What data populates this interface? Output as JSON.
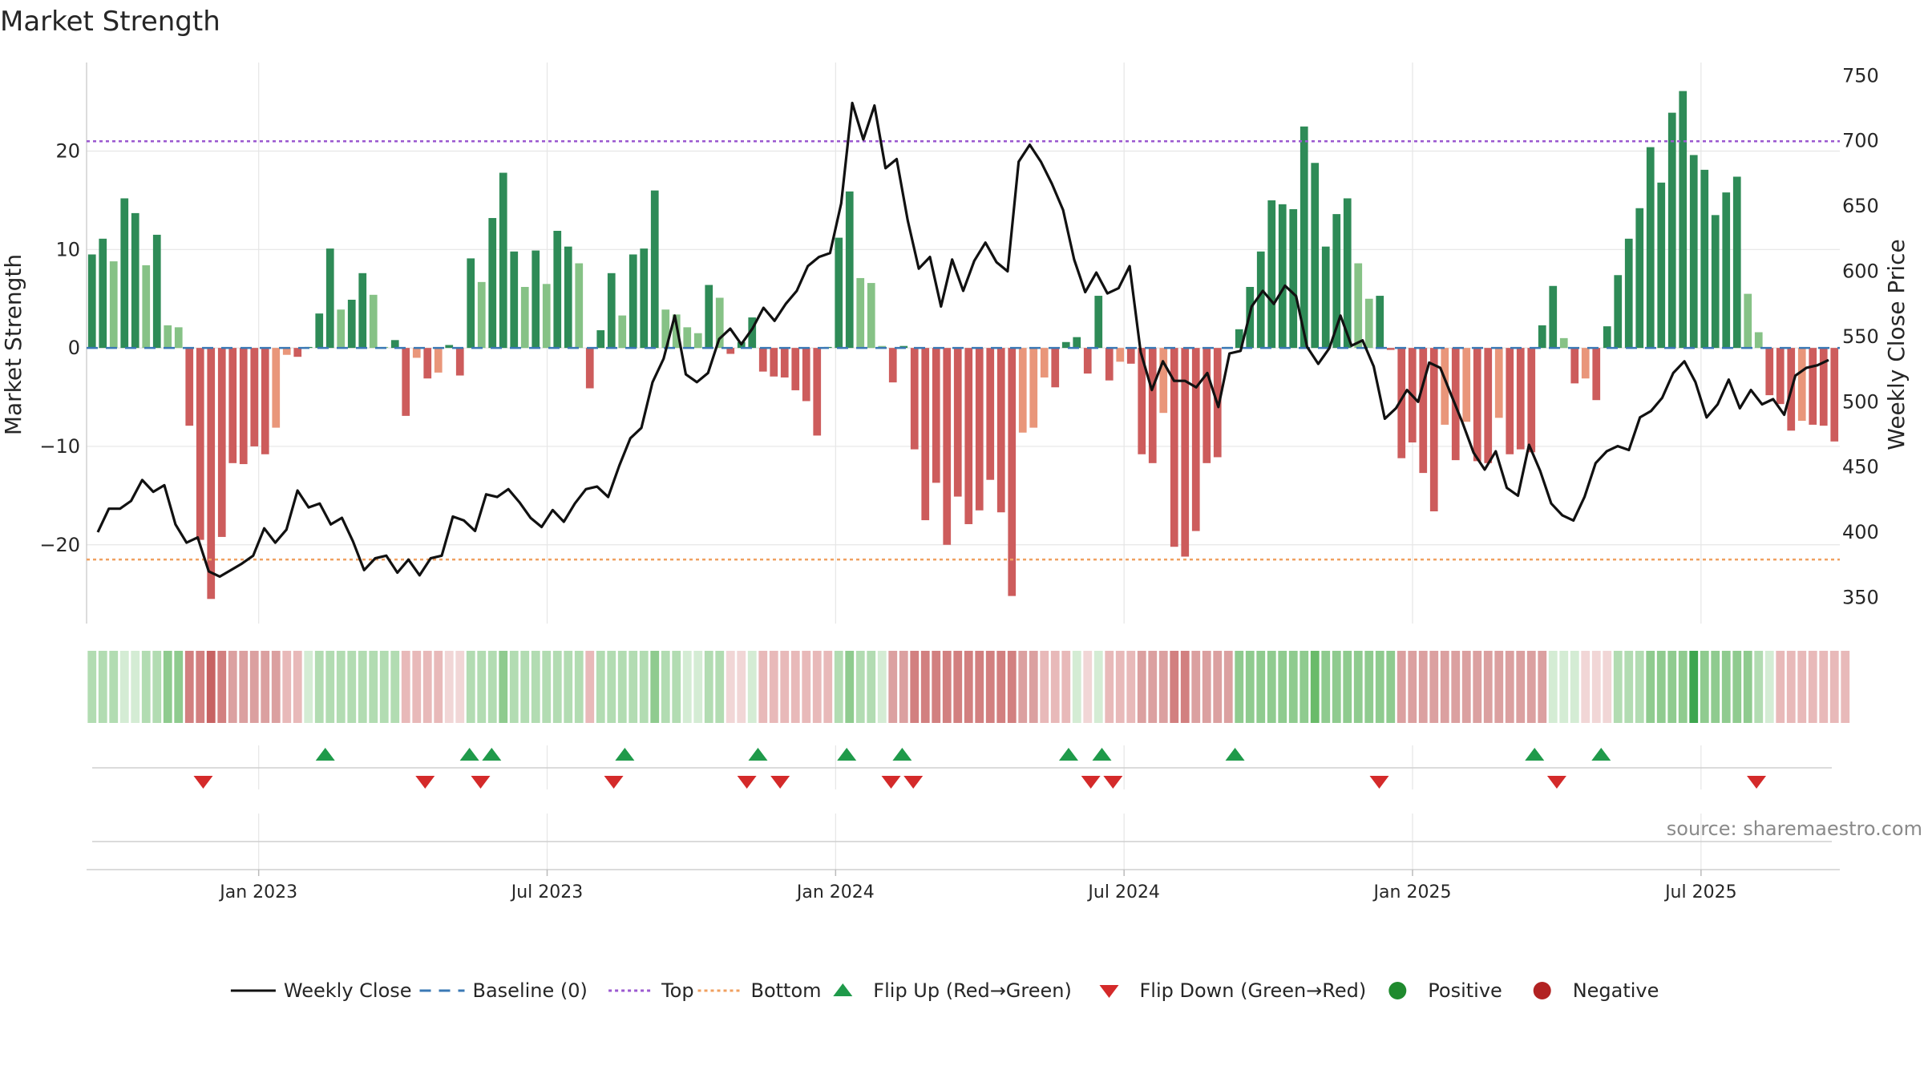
{
  "chart_data": {
    "type": "bar",
    "title": "Market Strength",
    "ylabel_left": "Market Strength",
    "ylabel_right": "Weekly Close Price",
    "left_ylim": [
      -28,
      29
    ],
    "right_ylim": [
      330,
      760
    ],
    "left_ticks": [
      -20,
      -10,
      0,
      10,
      20
    ],
    "left_tick_labels": [
      "−20",
      "−10",
      "0",
      "10",
      "20"
    ],
    "right_ticks": [
      350,
      400,
      450,
      500,
      550,
      600,
      650,
      700,
      750
    ],
    "right_tick_labels": [
      "350",
      "400",
      "450",
      "500",
      "550",
      "600",
      "650",
      "700",
      "750"
    ],
    "x_week_range": [
      0,
      156
    ],
    "x_ticks": [
      14.5,
      40.5,
      66.5,
      92.5,
      118.5,
      144.5
    ],
    "x_tick_labels": [
      "Jan 2023",
      "Jul 2023",
      "Jan 2024",
      "Jul 2024",
      "Jan 2025",
      "Jul 2025"
    ],
    "top_threshold": 21,
    "bottom_threshold": -21.5,
    "strength": [
      9.5,
      11.1,
      8.8,
      15.2,
      13.7,
      8.4,
      11.5,
      2.3,
      2.1,
      -7.9,
      -19.5,
      -25.5,
      -19.2,
      -11.7,
      -11.8,
      -10,
      -10.8,
      -8.1,
      -0.7,
      -0.9,
      0.1,
      3.5,
      10.1,
      3.9,
      4.9,
      7.6,
      5.4,
      0.1,
      0.8,
      -6.9,
      -1,
      -3.1,
      -2.5,
      0.3,
      -2.8,
      9.1,
      6.7,
      13.2,
      17.8,
      9.8,
      6.2,
      9.9,
      6.5,
      11.9,
      10.3,
      8.6,
      -4.1,
      1.8,
      7.6,
      3.3,
      9.5,
      10.1,
      16,
      3.9,
      3.4,
      2.1,
      1.5,
      6.4,
      5.1,
      -0.6,
      0.6,
      3.1,
      -2.4,
      -2.9,
      -3,
      -4.3,
      -5.4,
      -8.9,
      0.1,
      11.2,
      15.9,
      7.1,
      6.6,
      0.2,
      -3.5,
      0.2,
      -10.3,
      -17.5,
      -13.7,
      -20,
      -15.1,
      -17.9,
      -16.5,
      -13.4,
      -16.7,
      -25.2,
      -8.6,
      -8.1,
      -3,
      -4,
      0.6,
      1.1,
      -2.6,
      5.3,
      -3.3,
      -1.4,
      -1.6,
      -10.8,
      -11.7,
      -6.6,
      -20.2,
      -21.2,
      -18.6,
      -11.7,
      -11.1,
      0.1,
      1.9,
      6.2,
      9.8,
      15,
      14.6,
      14.1,
      22.5,
      18.8,
      10.3,
      13.6,
      15.2,
      8.6,
      5,
      5.3,
      -0.2,
      -11.2,
      -9.6,
      -12.7,
      -16.6,
      -7.8,
      -11.4,
      -7.5,
      -11.5,
      -11.7,
      -7.1,
      -10.8,
      -10.3,
      -10.6,
      2.3,
      6.3,
      1,
      -3.6,
      -3.1,
      -5.3,
      2.2,
      7.4,
      11.1,
      14.2,
      20.4,
      16.8,
      23.9,
      26.1,
      19.6,
      18.1,
      13.5,
      15.8,
      17.4,
      5.5,
      1.6,
      -4.8,
      -5.7,
      -8.4,
      -7.4,
      -7.8,
      -7.9,
      -9.5
    ],
    "price_x_weeks": [
      0,
      1,
      2,
      3,
      4,
      5,
      6,
      7,
      8,
      9,
      10,
      11,
      12,
      13,
      14,
      15,
      16,
      17,
      18,
      19,
      20,
      21,
      22,
      23,
      24,
      25,
      26,
      27,
      28,
      29,
      30,
      31,
      32,
      33,
      34,
      35,
      36,
      37,
      38,
      39,
      40,
      41,
      42,
      43,
      44,
      45,
      46,
      47,
      48,
      49,
      50,
      51,
      52,
      53,
      54,
      55,
      56,
      57,
      58,
      59,
      60,
      61,
      62,
      63,
      64,
      65,
      66,
      67,
      68,
      69,
      70,
      71,
      72,
      73,
      74,
      75,
      76,
      77,
      78,
      79,
      80,
      81,
      82,
      83,
      84,
      85,
      86,
      87,
      88,
      89,
      90,
      91,
      92,
      93,
      94,
      95,
      96,
      97,
      98,
      99,
      100,
      101,
      102,
      103,
      104,
      105,
      106,
      107,
      108,
      109,
      110,
      111,
      112,
      113,
      114,
      115,
      116,
      117,
      118,
      119,
      120,
      121,
      122,
      123,
      124,
      125,
      126,
      127,
      128,
      129,
      130,
      131,
      132,
      133,
      134,
      135,
      136,
      137,
      138,
      139,
      140,
      141,
      142,
      143,
      144,
      145,
      146,
      147,
      148,
      149,
      150,
      151,
      152,
      153,
      154,
      155,
      156
    ],
    "price": [
      400,
      418,
      418,
      424,
      440,
      431,
      436,
      406,
      392,
      396,
      370,
      366,
      371,
      376,
      382,
      403,
      392,
      402,
      432,
      419,
      422,
      406,
      411,
      393,
      371,
      380,
      382,
      369,
      379,
      367,
      380,
      382,
      412,
      409,
      401,
      429,
      427,
      433,
      423,
      411,
      404,
      417,
      408,
      422,
      433,
      435,
      427,
      451,
      472,
      480,
      515,
      533,
      566,
      521,
      515,
      522,
      548,
      556,
      544,
      556,
      572,
      562,
      575,
      585,
      604,
      611,
      614,
      652,
      729,
      701,
      727,
      679,
      686,
      639,
      602,
      611,
      573,
      609,
      585,
      608,
      622,
      607,
      600,
      684,
      697,
      684,
      667,
      647,
      609,
      584,
      599,
      583,
      587,
      604,
      538,
      509,
      531,
      516,
      516,
      511,
      522,
      496,
      537,
      539,
      573,
      585,
      575,
      589,
      581,
      542,
      529,
      541,
      566,
      543,
      547,
      527,
      487,
      495,
      509,
      500,
      530,
      526,
      505,
      484,
      461,
      448,
      462,
      434,
      428,
      467,
      447,
      422,
      413,
      409,
      427,
      453,
      462,
      466,
      463,
      488,
      493,
      503,
      522,
      531,
      515,
      488,
      498,
      517,
      495,
      509,
      498,
      502,
      490,
      520,
      526,
      528,
      532
    ]
  },
  "heatmap": {
    "levels": [
      2,
      2,
      2,
      1,
      1,
      2,
      2,
      3,
      3,
      -4,
      -4,
      -5,
      -4,
      -3,
      -3,
      -3,
      -3,
      -3,
      -2,
      -2,
      1,
      2,
      2,
      2,
      2,
      2,
      2,
      2,
      2,
      -2,
      -2,
      -2,
      -2,
      -1,
      -1,
      2,
      2,
      2,
      3,
      2,
      2,
      2,
      2,
      2,
      2,
      2,
      -2,
      2,
      2,
      2,
      2,
      2,
      3,
      2,
      2,
      1,
      1,
      2,
      2,
      -1,
      -1,
      1,
      -2,
      -2,
      -2,
      -2,
      -2,
      -2,
      -2,
      2,
      3,
      2,
      2,
      1,
      -3,
      -3,
      -4,
      -4,
      -4,
      -4,
      -4,
      -4,
      -4,
      -4,
      -4,
      -4,
      -3,
      -3,
      -2,
      -2,
      -2,
      1,
      -1,
      1,
      -2,
      -2,
      -2,
      -3,
      -3,
      -3,
      -4,
      -4,
      -3,
      -3,
      -3,
      -3,
      3,
      3,
      3,
      3,
      3,
      3,
      3,
      4,
      3,
      3,
      3,
      3,
      3,
      3,
      3,
      -3,
      -3,
      -3,
      -3,
      -3,
      -3,
      -3,
      -3,
      -3,
      -3,
      -3,
      -3,
      -3,
      -3,
      1,
      1,
      1,
      -1,
      -1,
      -1,
      2,
      2,
      2,
      3,
      3,
      3,
      3,
      5,
      3,
      3,
      3,
      3,
      3,
      2,
      1,
      -2,
      -2,
      -2,
      -2,
      -2,
      -2,
      -2
    ]
  },
  "flips": {
    "up": [
      20.5,
      33.5,
      35.5,
      47.5,
      59.5,
      67.5,
      72.5,
      87.5,
      90.5,
      102.5,
      129.5,
      135.5
    ],
    "down": [
      9.5,
      29.5,
      34.5,
      46.5,
      58.5,
      61.5,
      71.5,
      73.5,
      89.5,
      91.5,
      115.5,
      131.5,
      149.5
    ]
  },
  "source": "source: sharemaestro.com",
  "legend": [
    {
      "label": "Weekly Close",
      "icon": "line-solid",
      "color": "#111111"
    },
    {
      "label": "Baseline (0)",
      "icon": "line-dashed",
      "color": "#3a78b5"
    },
    {
      "label": "Top",
      "icon": "line-dotted",
      "color": "#9b59d0"
    },
    {
      "label": "Bottom",
      "icon": "line-dotted",
      "color": "#f0a060"
    },
    {
      "label": "Flip Up (Red→Green)",
      "icon": "triangle-up",
      "color": "#1f9a4a"
    },
    {
      "label": "Flip Down (Green→Red)",
      "icon": "triangle-down",
      "color": "#d42a2a"
    },
    {
      "label": "Positive",
      "icon": "dot",
      "color": "#1f8a2e"
    },
    {
      "label": "Negative",
      "icon": "dot",
      "color": "#b22222"
    }
  ],
  "colors": {
    "pos_strong": "#2e8b57",
    "pos_light": "#86c286",
    "neg_strong": "#cd5c5c",
    "neg_light": "#e9967a",
    "price_line": "#111111",
    "top_line": "#9b59d0",
    "bottom_line": "#f0a060",
    "baseline": "#3a78b5",
    "flip_up": "#1f9a4a",
    "flip_down": "#d42a2a"
  }
}
